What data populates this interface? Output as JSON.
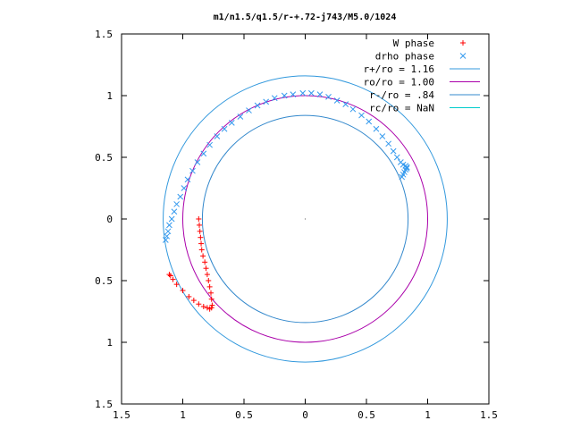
{
  "chart_data": {
    "type": "scatter",
    "title": "m1/n1.5/q1.5/r-+.72-j743/M5.0/1024",
    "xlabel": "",
    "ylabel": "",
    "xlim": [
      -1.5,
      1.5
    ],
    "ylim": [
      -1.5,
      1.5
    ],
    "x_ticks": [
      -1.5,
      -1,
      -0.5,
      0,
      0.5,
      1,
      1.5
    ],
    "y_ticks": [
      -1.5,
      -1,
      -0.5,
      0,
      0.5,
      1,
      1.5
    ],
    "x_tick_labels": [
      "1.5",
      "1",
      "0.5",
      "0",
      "0.5",
      "1",
      "1.5"
    ],
    "y_tick_labels": [
      "1.5",
      "1",
      "0.5",
      "0",
      "0.5",
      "1",
      "1.5"
    ],
    "grid": false,
    "legend_position": "top-right",
    "series": [
      {
        "name": "W phase",
        "kind": "points",
        "marker": "+",
        "color": "#ff0000",
        "x": [
          -0.87,
          -0.865,
          -0.86,
          -0.855,
          -0.85,
          -0.845,
          -0.835,
          -0.82,
          -0.81,
          -0.8,
          -0.79,
          -0.78,
          -0.77,
          -0.765,
          -0.76,
          -0.765,
          -0.78,
          -0.8,
          -0.83,
          -0.87,
          -0.91,
          -0.95,
          -1.0,
          -1.05,
          -1.08,
          -1.1,
          -1.11
        ],
        "y": [
          0.0,
          -0.05,
          -0.1,
          -0.15,
          -0.2,
          -0.25,
          -0.3,
          -0.35,
          -0.4,
          -0.45,
          -0.5,
          -0.55,
          -0.6,
          -0.65,
          -0.7,
          -0.72,
          -0.73,
          -0.72,
          -0.71,
          -0.69,
          -0.66,
          -0.63,
          -0.58,
          -0.53,
          -0.49,
          -0.46,
          -0.45
        ]
      },
      {
        "name": "drho phase",
        "kind": "points",
        "marker": "x",
        "color": "#3399ee",
        "x": [
          -1.14,
          -1.13,
          -1.12,
          -1.11,
          -1.09,
          -1.07,
          -1.05,
          -1.02,
          -0.99,
          -0.96,
          -0.92,
          -0.88,
          -0.83,
          -0.78,
          -0.72,
          -0.66,
          -0.6,
          -0.53,
          -0.46,
          -0.39,
          -0.32,
          -0.25,
          -0.17,
          -0.1,
          -0.02,
          0.05,
          0.12,
          0.19,
          0.26,
          0.33,
          0.39,
          0.46,
          0.52,
          0.58,
          0.63,
          0.68,
          0.72,
          0.75,
          0.78,
          0.8,
          0.82,
          0.83,
          0.83,
          0.82,
          0.81,
          0.8,
          0.79
        ],
        "y": [
          -0.17,
          -0.14,
          -0.1,
          -0.05,
          0.0,
          0.06,
          0.12,
          0.18,
          0.25,
          0.32,
          0.39,
          0.46,
          0.53,
          0.6,
          0.67,
          0.73,
          0.78,
          0.83,
          0.88,
          0.92,
          0.95,
          0.98,
          1.0,
          1.01,
          1.02,
          1.02,
          1.01,
          0.99,
          0.96,
          0.93,
          0.89,
          0.84,
          0.79,
          0.73,
          0.67,
          0.61,
          0.55,
          0.5,
          0.46,
          0.44,
          0.43,
          0.42,
          0.41,
          0.4,
          0.38,
          0.36,
          0.34
        ]
      },
      {
        "name": "r+/ro = 1.16",
        "kind": "circle",
        "radius": 1.16,
        "color": "#3399dd"
      },
      {
        "name": "ro/ro = 1.00",
        "kind": "circle",
        "radius": 1.0,
        "color": "#aa00aa"
      },
      {
        "name": "r-/ro = .84",
        "kind": "circle",
        "radius": 0.84,
        "color": "#3388cc"
      },
      {
        "name": "rc/ro = NaN",
        "kind": "circle",
        "radius": null,
        "color": "#00cccc"
      }
    ]
  }
}
